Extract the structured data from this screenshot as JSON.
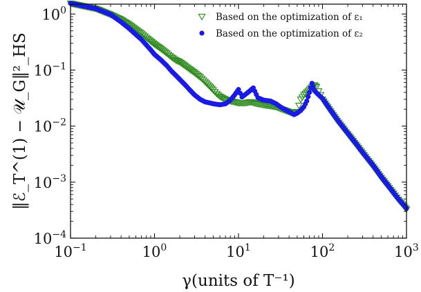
{
  "chart_data": {
    "type": "scatter",
    "xscale": "log",
    "yscale": "log",
    "xlim": [
      0.1,
      1000
    ],
    "ylim": [
      0.0001,
      1.5
    ],
    "grid": false,
    "legend_position": "top-right",
    "xlabel": "γ(units of T⁻¹)",
    "ylabel": "‖ℰ_T^(1) − 𝒰_G‖²_HS",
    "x_ticks": [
      {
        "value": 0.1,
        "base": "10",
        "exp": "−1"
      },
      {
        "value": 1,
        "base": "10",
        "exp": "0"
      },
      {
        "value": 10,
        "base": "10",
        "exp": "1"
      },
      {
        "value": 100,
        "base": "10",
        "exp": "2"
      },
      {
        "value": 1000,
        "base": "10",
        "exp": "3"
      }
    ],
    "y_ticks": [
      {
        "value": 0.0001,
        "base": "10",
        "exp": "−4"
      },
      {
        "value": 0.001,
        "base": "10",
        "exp": "−3"
      },
      {
        "value": 0.01,
        "base": "10",
        "exp": "−2"
      },
      {
        "value": 0.1,
        "base": "10",
        "exp": "−1"
      },
      {
        "value": 1,
        "base": "10",
        "exp": "0"
      }
    ],
    "series": [
      {
        "name": "Based on the optimization of ε₁",
        "color": "#2e8b1e",
        "marker": "triangle-down-open",
        "points": [
          [
            0.1,
            1.55
          ],
          [
            0.2,
            1.25
          ],
          [
            0.3,
            0.98
          ],
          [
            0.4,
            0.8
          ],
          [
            0.5,
            0.65
          ],
          [
            0.6,
            0.53
          ],
          [
            0.7,
            0.45
          ],
          [
            0.8,
            0.38
          ],
          [
            0.9,
            0.33
          ],
          [
            1.0,
            0.29
          ],
          [
            1.2,
            0.24
          ],
          [
            1.4,
            0.2
          ],
          [
            1.6,
            0.17
          ],
          [
            1.8,
            0.15
          ],
          [
            2.0,
            0.14
          ],
          [
            2.3,
            0.12
          ],
          [
            2.6,
            0.105
          ],
          [
            3.0,
            0.09
          ],
          [
            3.5,
            0.075
          ],
          [
            4.0,
            0.062
          ],
          [
            4.5,
            0.052
          ],
          [
            5.0,
            0.044
          ],
          [
            5.5,
            0.038
          ],
          [
            6.0,
            0.034
          ],
          [
            7.0,
            0.03
          ],
          [
            8.0,
            0.028
          ],
          [
            9.0,
            0.027
          ],
          [
            10,
            0.026
          ],
          [
            12,
            0.026
          ],
          [
            14,
            0.027
          ],
          [
            17,
            0.025
          ],
          [
            20,
            0.024
          ],
          [
            24,
            0.023
          ],
          [
            28,
            0.022
          ],
          [
            33,
            0.02
          ],
          [
            40,
            0.018
          ],
          [
            46,
            0.017
          ],
          [
            50,
            0.018
          ],
          [
            55,
            0.03
          ],
          [
            60,
            0.036
          ],
          [
            65,
            0.04
          ],
          [
            70,
            0.045
          ],
          [
            75,
            0.05
          ],
          [
            80,
            0.054
          ],
          [
            85,
            0.05
          ],
          [
            90,
            0.042
          ],
          [
            95,
            0.036
          ],
          [
            100,
            0.03
          ],
          [
            120,
            0.02
          ],
          [
            150,
            0.0125
          ],
          [
            200,
            0.0072
          ],
          [
            250,
            0.0047
          ],
          [
            300,
            0.0033
          ],
          [
            400,
            0.0019
          ],
          [
            500,
            0.0012
          ],
          [
            600,
            0.00085
          ],
          [
            700,
            0.00063
          ],
          [
            800,
            0.00049
          ],
          [
            900,
            0.0004
          ],
          [
            1000,
            0.00033
          ]
        ]
      },
      {
        "name": "Based on the optimization of ε₂",
        "color": "#1a1ae6",
        "marker": "circle-filled",
        "points": [
          [
            0.1,
            1.55
          ],
          [
            0.2,
            1.25
          ],
          [
            0.3,
            0.98
          ],
          [
            0.4,
            0.72
          ],
          [
            0.5,
            0.55
          ],
          [
            0.6,
            0.43
          ],
          [
            0.7,
            0.35
          ],
          [
            0.8,
            0.28
          ],
          [
            0.9,
            0.23
          ],
          [
            1.0,
            0.19
          ],
          [
            1.2,
            0.15
          ],
          [
            1.4,
            0.12
          ],
          [
            1.6,
            0.095
          ],
          [
            1.8,
            0.08
          ],
          [
            2.0,
            0.068
          ],
          [
            2.3,
            0.055
          ],
          [
            2.6,
            0.045
          ],
          [
            3.0,
            0.036
          ],
          [
            3.5,
            0.03
          ],
          [
            4.0,
            0.027
          ],
          [
            4.5,
            0.026
          ],
          [
            5.0,
            0.025
          ],
          [
            6.0,
            0.024
          ],
          [
            7.0,
            0.025
          ],
          [
            8.0,
            0.029
          ],
          [
            9.0,
            0.036
          ],
          [
            10,
            0.045
          ],
          [
            11,
            0.033
          ],
          [
            13,
            0.04
          ],
          [
            15,
            0.048
          ],
          [
            17,
            0.032
          ],
          [
            20,
            0.029
          ],
          [
            24,
            0.028
          ],
          [
            28,
            0.025
          ],
          [
            33,
            0.021
          ],
          [
            40,
            0.018
          ],
          [
            46,
            0.016
          ],
          [
            50,
            0.017
          ],
          [
            55,
            0.019
          ],
          [
            60,
            0.022
          ],
          [
            65,
            0.028
          ],
          [
            70,
            0.04
          ],
          [
            75,
            0.058
          ],
          [
            80,
            0.043
          ],
          [
            90,
            0.036
          ],
          [
            100,
            0.031
          ],
          [
            120,
            0.021
          ],
          [
            150,
            0.013
          ],
          [
            200,
            0.0075
          ],
          [
            250,
            0.0049
          ],
          [
            300,
            0.0034
          ],
          [
            400,
            0.002
          ],
          [
            500,
            0.00125
          ],
          [
            600,
            0.00088
          ],
          [
            700,
            0.00065
          ],
          [
            800,
            0.0005
          ],
          [
            900,
            0.00041
          ],
          [
            1000,
            0.00034
          ]
        ]
      }
    ]
  }
}
